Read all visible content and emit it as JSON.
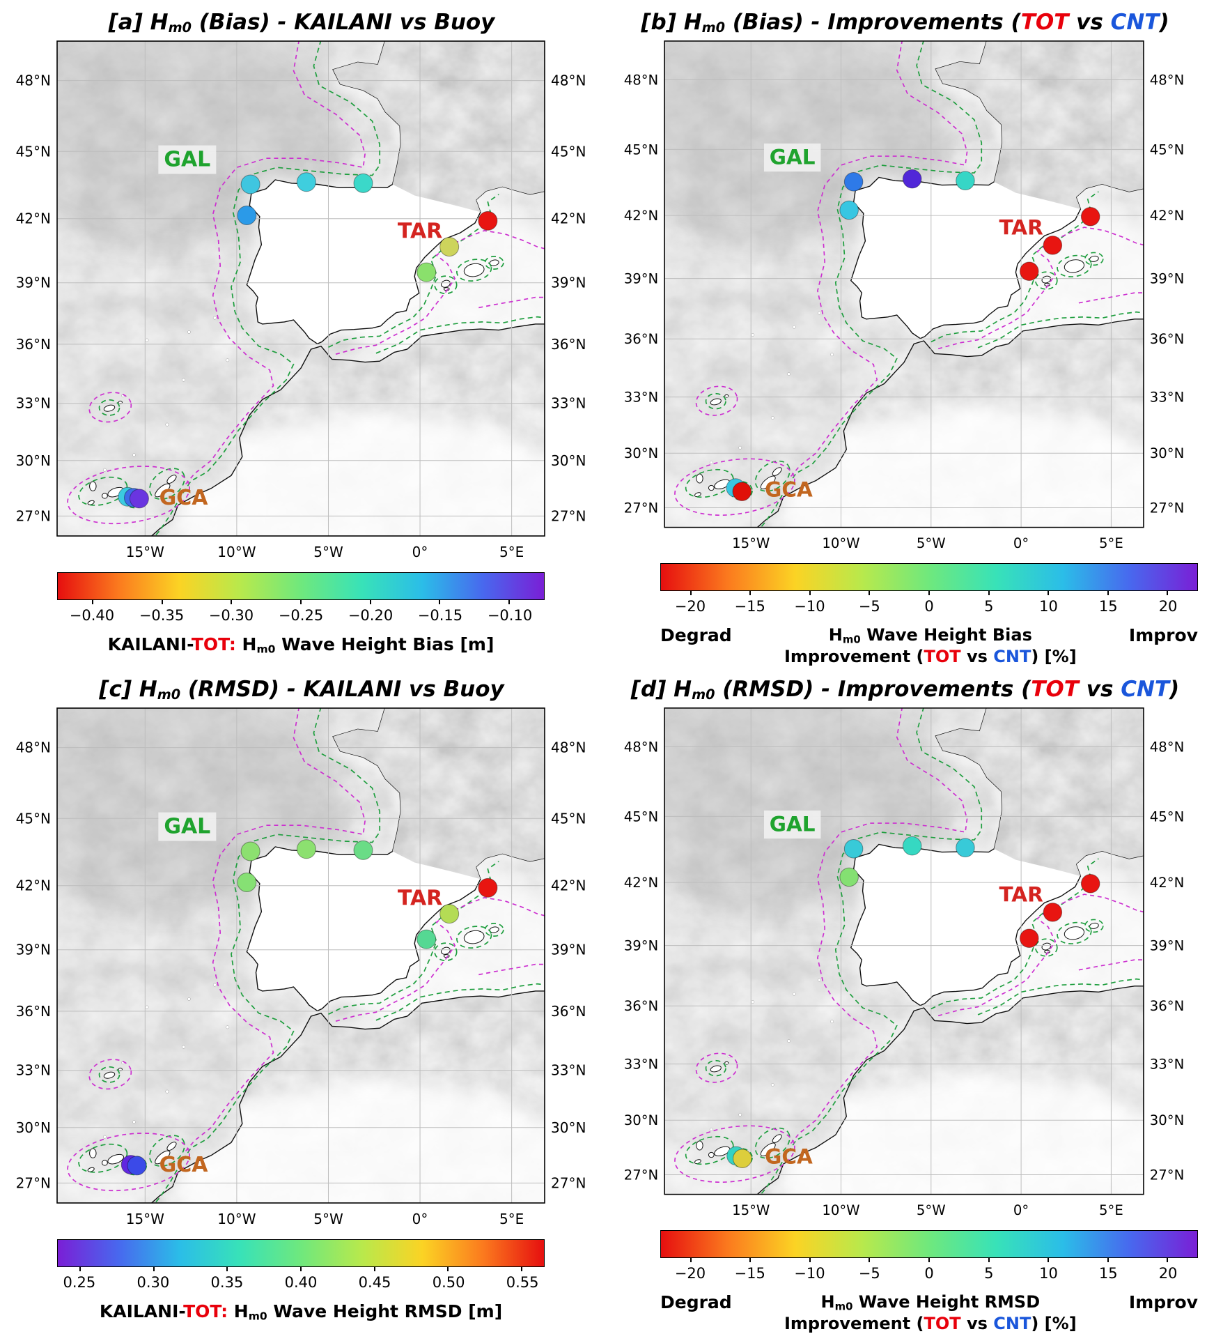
{
  "geo": {
    "lon_min": -19.8,
    "lon_max": 6.8,
    "lat_min": 25.9,
    "lat_max": 49.6,
    "lat_ticks": [
      {
        "value": 48,
        "label": "48°N"
      },
      {
        "value": 45,
        "label": "45°N"
      },
      {
        "value": 42,
        "label": "42°N"
      },
      {
        "value": 39,
        "label": "39°N"
      },
      {
        "value": 36,
        "label": "36°N"
      },
      {
        "value": 33,
        "label": "33°N"
      },
      {
        "value": 30,
        "label": "30°N"
      },
      {
        "value": 27,
        "label": "27°N"
      }
    ],
    "lon_ticks": [
      {
        "value": -15,
        "label": "15°W"
      },
      {
        "value": -10,
        "label": "10°W"
      },
      {
        "value": -5,
        "label": "5°W"
      },
      {
        "value": 0,
        "label": "0°"
      },
      {
        "value": 5,
        "label": "5°E"
      }
    ]
  },
  "regions": [
    {
      "name": "GAL",
      "color": "#1fa32e",
      "lat": 44.35,
      "lon": -12.7,
      "bg": true
    },
    {
      "name": "TAR",
      "color": "#d42420",
      "lat": 41.1,
      "lon": 0.0,
      "bg": false
    },
    {
      "name": "GCA",
      "color": "#c2661f",
      "lat": 27.62,
      "lon": -12.9,
      "bg": false
    }
  ],
  "colors": {
    "tot_red": "#e8000b",
    "cnt_blue": "#1a56db"
  },
  "chart_data": [
    {
      "type": "scatter",
      "panel": "a",
      "title": "[a] Hm0 (Bias) - KAILANI vs Buoy",
      "title_segments": [
        {
          "t": "[a] H"
        },
        {
          "t": "m0",
          "sub": true
        },
        {
          "t": " (Bias) - KAILANI vs Buoy"
        }
      ],
      "colorbar": {
        "vmin": -0.425,
        "vmax": -0.075,
        "gradient": [
          "#e60f0f",
          "#fb7a1e",
          "#fbd324",
          "#b8e94c",
          "#6fe87d",
          "#38e2b8",
          "#2bbde8",
          "#4868ee",
          "#7a1fd6"
        ],
        "ticks": [
          {
            "value": -0.4,
            "label": "−0.40"
          },
          {
            "value": -0.35,
            "label": "−0.35"
          },
          {
            "value": -0.3,
            "label": "−0.30"
          },
          {
            "value": -0.25,
            "label": "−0.25"
          },
          {
            "value": -0.2,
            "label": "−0.20"
          },
          {
            "value": -0.15,
            "label": "−0.15"
          },
          {
            "value": -0.1,
            "label": "−0.10"
          }
        ],
        "caption_segments": [
          {
            "t": "KAILANI-"
          },
          {
            "t": "TOT:",
            "color": "#e8000b"
          },
          {
            "t": " H"
          },
          {
            "t": "m0",
            "sub": true
          },
          {
            "t": " Wave Height Bias [m]"
          }
        ]
      },
      "stations": [
        {
          "group": "GAL",
          "lat": 43.55,
          "lon": -9.25,
          "color": "#3fc6e0",
          "value": -0.2
        },
        {
          "group": "GAL",
          "lat": 42.15,
          "lon": -9.45,
          "color": "#2b9ae8",
          "value": -0.16
        },
        {
          "group": "GAL",
          "lat": 43.65,
          "lon": -6.2,
          "color": "#3fcede",
          "value": -0.2
        },
        {
          "group": "GAL",
          "lat": 43.6,
          "lon": -3.1,
          "color": "#3bd8c9",
          "value": -0.21
        },
        {
          "group": "TAR",
          "lat": 41.9,
          "lon": 3.7,
          "color": "#e81511",
          "value": -0.42
        },
        {
          "group": "TAR",
          "lat": 40.7,
          "lon": 1.6,
          "color": "#cdd45c",
          "value": -0.31
        },
        {
          "group": "TAR",
          "lat": 39.5,
          "lon": 0.35,
          "color": "#8ae06c",
          "value": -0.28
        },
        {
          "group": "GCA",
          "lat": 28.05,
          "lon": -15.95,
          "color": "#3bcbe0",
          "value": -0.2
        },
        {
          "group": "GCA",
          "lat": 28.0,
          "lon": -15.62,
          "color": "#3e6ce8",
          "value": -0.14
        },
        {
          "group": "GCA",
          "lat": 27.95,
          "lon": -15.32,
          "color": "#6a35e0",
          "value": -0.1
        }
      ]
    },
    {
      "type": "scatter",
      "panel": "b",
      "title": "[b] Hm0 (Bias) - Improvements (TOT vs CNT)",
      "title_segments": [
        {
          "t": "[b] H"
        },
        {
          "t": "m0",
          "sub": true
        },
        {
          "t": " (Bias) - Improvements ("
        },
        {
          "t": "TOT",
          "color": "#e8000b"
        },
        {
          "t": " vs "
        },
        {
          "t": "CNT",
          "color": "#1a56db"
        },
        {
          "t": ")"
        }
      ],
      "colorbar": {
        "vmin": -22.5,
        "vmax": 22.5,
        "gradient": [
          "#e60f0f",
          "#fb7a1e",
          "#fbd324",
          "#b8e94c",
          "#6fe87d",
          "#38e2b8",
          "#2bbde8",
          "#4868ee",
          "#7a1fd6"
        ],
        "ticks": [
          {
            "value": -20,
            "label": "−20"
          },
          {
            "value": -15,
            "label": "−15"
          },
          {
            "value": -10,
            "label": "−10"
          },
          {
            "value": -5,
            "label": "−5"
          },
          {
            "value": 0,
            "label": "0"
          },
          {
            "value": 5,
            "label": "5"
          },
          {
            "value": 10,
            "label": "10"
          },
          {
            "value": 15,
            "label": "15"
          },
          {
            "value": 20,
            "label": "20"
          }
        ],
        "caption_left": "Degrad",
        "caption_right": "Improv",
        "caption_lines": [
          [
            {
              "t": "H"
            },
            {
              "t": "m0",
              "sub": true
            },
            {
              "t": " Wave Height Bias"
            }
          ],
          [
            {
              "t": "Improvement ("
            },
            {
              "t": "TOT",
              "color": "#e8000b"
            },
            {
              "t": " vs "
            },
            {
              "t": "CNT",
              "color": "#1a56db"
            },
            {
              "t": ") [%]"
            }
          ]
        ]
      },
      "stations": [
        {
          "group": "GAL",
          "lat": 43.55,
          "lon": -9.3,
          "color": "#2e7ae8",
          "value": 13
        },
        {
          "group": "GAL",
          "lat": 42.25,
          "lon": -9.55,
          "color": "#38c6e2",
          "value": 8
        },
        {
          "group": "GAL",
          "lat": 43.68,
          "lon": -6.05,
          "color": "#5127d8",
          "value": 17
        },
        {
          "group": "GAL",
          "lat": 43.6,
          "lon": -3.1,
          "color": "#36d6c6",
          "value": 6
        },
        {
          "group": "TAR",
          "lat": 41.95,
          "lon": 3.85,
          "color": "#e81511",
          "value": -19
        },
        {
          "group": "TAR",
          "lat": 40.6,
          "lon": 1.75,
          "color": "#e81511",
          "value": -19
        },
        {
          "group": "TAR",
          "lat": 39.35,
          "lon": 0.45,
          "color": "#e81511",
          "value": -19
        },
        {
          "group": "GCA",
          "lat": 28.1,
          "lon": -15.85,
          "color": "#38c6e2",
          "value": 8
        },
        {
          "group": "GCA",
          "lat": 27.9,
          "lon": -15.5,
          "color": "#e01008",
          "value": -20
        }
      ]
    },
    {
      "type": "scatter",
      "panel": "c",
      "title": "[c] Hm0 (RMSD) - KAILANI vs Buoy",
      "title_segments": [
        {
          "t": "[c] H"
        },
        {
          "t": "m0",
          "sub": true
        },
        {
          "t": " (RMSD) - KAILANI vs Buoy"
        }
      ],
      "colorbar": {
        "vmin": 0.235,
        "vmax": 0.565,
        "gradient": [
          "#7a1fd6",
          "#4868ee",
          "#2bbde8",
          "#38e2b8",
          "#6fe87d",
          "#b8e94c",
          "#fbd324",
          "#fb7a1e",
          "#e60f0f"
        ],
        "ticks": [
          {
            "value": 0.25,
            "label": "0.25"
          },
          {
            "value": 0.3,
            "label": "0.30"
          },
          {
            "value": 0.35,
            "label": "0.35"
          },
          {
            "value": 0.4,
            "label": "0.40"
          },
          {
            "value": 0.45,
            "label": "0.45"
          },
          {
            "value": 0.5,
            "label": "0.50"
          },
          {
            "value": 0.55,
            "label": "0.55"
          }
        ],
        "caption_segments": [
          {
            "t": "KAILANI-"
          },
          {
            "t": "TOT:",
            "color": "#e8000b"
          },
          {
            "t": " H"
          },
          {
            "t": "m0",
            "sub": true
          },
          {
            "t": " Wave Height RMSD [m]"
          }
        ]
      },
      "stations": [
        {
          "group": "GAL",
          "lat": 43.55,
          "lon": -9.25,
          "color": "#8ce070",
          "value": 0.44
        },
        {
          "group": "GAL",
          "lat": 42.15,
          "lon": -9.45,
          "color": "#86e074",
          "value": 0.43
        },
        {
          "group": "GAL",
          "lat": 43.65,
          "lon": -6.2,
          "color": "#8ce070",
          "value": 0.44
        },
        {
          "group": "GAL",
          "lat": 43.6,
          "lon": -3.1,
          "color": "#6adc86",
          "value": 0.42
        },
        {
          "group": "TAR",
          "lat": 41.9,
          "lon": 3.7,
          "color": "#e81511",
          "value": 0.55
        },
        {
          "group": "TAR",
          "lat": 40.7,
          "lon": 1.6,
          "color": "#b4dc55",
          "value": 0.46
        },
        {
          "group": "TAR",
          "lat": 39.5,
          "lon": 0.35,
          "color": "#55d893",
          "value": 0.41
        },
        {
          "group": "GCA",
          "lat": 28.0,
          "lon": -15.78,
          "color": "#6127e0",
          "value": 0.26
        },
        {
          "group": "GCA",
          "lat": 27.95,
          "lon": -15.45,
          "color": "#3b4ae8",
          "value": 0.29
        }
      ]
    },
    {
      "type": "scatter",
      "panel": "d",
      "title": "[d] Hm0 (RMSD) - Improvements (TOT vs CNT)",
      "title_segments": [
        {
          "t": "[d] H"
        },
        {
          "t": "m0",
          "sub": true
        },
        {
          "t": " (RMSD) - Improvements ("
        },
        {
          "t": "TOT",
          "color": "#e8000b"
        },
        {
          "t": " vs "
        },
        {
          "t": "CNT",
          "color": "#1a56db"
        },
        {
          "t": ")"
        }
      ],
      "colorbar": {
        "vmin": -22.5,
        "vmax": 22.5,
        "gradient": [
          "#e60f0f",
          "#fb7a1e",
          "#fbd324",
          "#b8e94c",
          "#6fe87d",
          "#38e2b8",
          "#2bbde8",
          "#4868ee",
          "#7a1fd6"
        ],
        "ticks": [
          {
            "value": -20,
            "label": "−20"
          },
          {
            "value": -15,
            "label": "−15"
          },
          {
            "value": -10,
            "label": "−10"
          },
          {
            "value": -5,
            "label": "−5"
          },
          {
            "value": 0,
            "label": "0"
          },
          {
            "value": 5,
            "label": "5"
          },
          {
            "value": 10,
            "label": "10"
          },
          {
            "value": 15,
            "label": "15"
          },
          {
            "value": 20,
            "label": "20"
          }
        ],
        "caption_left": "Degrad",
        "caption_right": "Improv",
        "caption_lines": [
          [
            {
              "t": "H"
            },
            {
              "t": "m0",
              "sub": true
            },
            {
              "t": " Wave Height RMSD"
            }
          ],
          [
            {
              "t": "Improvement ("
            },
            {
              "t": "TOT",
              "color": "#e8000b"
            },
            {
              "t": " vs "
            },
            {
              "t": "CNT",
              "color": "#1a56db"
            },
            {
              "t": ") [%]"
            }
          ]
        ]
      },
      "stations": [
        {
          "group": "GAL",
          "lat": 43.55,
          "lon": -9.3,
          "color": "#38cad8",
          "value": 8
        },
        {
          "group": "GAL",
          "lat": 42.25,
          "lon": -9.55,
          "color": "#84e072",
          "value": 3
        },
        {
          "group": "GAL",
          "lat": 43.68,
          "lon": -6.05,
          "color": "#36d8c2",
          "value": 6
        },
        {
          "group": "GAL",
          "lat": 43.6,
          "lon": -3.1,
          "color": "#38cad8",
          "value": 8
        },
        {
          "group": "TAR",
          "lat": 41.95,
          "lon": 3.85,
          "color": "#e81511",
          "value": -19
        },
        {
          "group": "TAR",
          "lat": 40.6,
          "lon": 1.75,
          "color": "#e81511",
          "value": -19
        },
        {
          "group": "TAR",
          "lat": 39.35,
          "lon": 0.45,
          "color": "#e81511",
          "value": -19
        },
        {
          "group": "GCA",
          "lat": 28.05,
          "lon": -15.82,
          "color": "#36d2c2",
          "value": 6
        },
        {
          "group": "GCA",
          "lat": 27.9,
          "lon": -15.48,
          "color": "#ddce3c",
          "value": -7
        }
      ]
    }
  ]
}
